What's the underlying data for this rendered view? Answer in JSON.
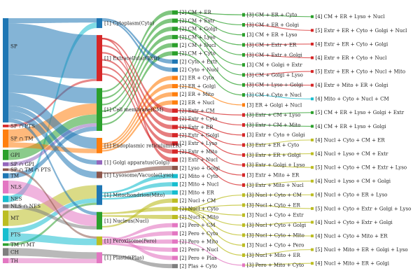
{
  "chart_data": {
    "type": "sankey",
    "title": "",
    "columns": [
      {
        "name": "signals",
        "nodes": [
          {
            "label": "SP",
            "color": "#1f77b4"
          },
          {
            "label": "SP ∩ PTS",
            "color": "#d62728"
          },
          {
            "label": "SP ∩ TM",
            "color": "#ff7f0e"
          },
          {
            "label": "GPI",
            "color": "#2ca02c"
          },
          {
            "label": "SP ∩ GPI",
            "color": "#9467bd"
          },
          {
            "label": "SP ∩ TM ∩ PTS",
            "color": "#8c564b"
          },
          {
            "label": "TM",
            "color": "#1f77b4"
          },
          {
            "label": "NLS",
            "color": "#e377c2"
          },
          {
            "label": "NES",
            "color": "#17becf"
          },
          {
            "label": "NLS ∩ NES",
            "color": "#7f7f7f"
          },
          {
            "label": "MT",
            "color": "#bcbd22"
          },
          {
            "label": "PTS",
            "color": "#17becf"
          },
          {
            "label": "TM ∩ MT",
            "color": "#2ca02c"
          },
          {
            "label": "CH",
            "color": "#7f7f7f"
          },
          {
            "label": "TH",
            "color": "#e377c2"
          }
        ]
      },
      {
        "name": "single location",
        "nodes": [
          {
            "label": "[1] Cytoplasm(Cyto)",
            "color": "#1f77b4"
          },
          {
            "label": "[1] Extracellular(Extr)",
            "color": "#d62728"
          },
          {
            "label": "[1] Cell membrane(CM)",
            "color": "#2ca02c"
          },
          {
            "label": "[1] Endoplasmic reticulum(ER)",
            "color": "#ff7f0e"
          },
          {
            "label": "[1] Golgi apparatus(Golgi)",
            "color": "#9467bd"
          },
          {
            "label": "[1] Lysosome/Vacuole(Lyso)",
            "color": "#8c564b"
          },
          {
            "label": "[1] Mitochondrion(Mito)",
            "color": "#1f77b4"
          },
          {
            "label": "[1] Nucleus(Nucl)",
            "color": "#2ca02c"
          },
          {
            "label": "[1] Peroxisome(Pero)",
            "color": "#bcbd22"
          },
          {
            "label": "[1] Plastid(Plas)",
            "color": "#e377c2"
          }
        ]
      },
      {
        "name": "two locations",
        "nodes": [
          {
            "label": "[2] CM + ER"
          },
          {
            "label": "[2] CM + Extr"
          },
          {
            "label": "[2] CM + Golgi"
          },
          {
            "label": "[2] CM + Lyso"
          },
          {
            "label": "[2] CM + Nucl"
          },
          {
            "label": "[2] CM + Cyto"
          },
          {
            "label": "[2] Cyto + Extr"
          },
          {
            "label": "[2] Cyto + Nucl"
          },
          {
            "label": "[2] ER + Cyto"
          },
          {
            "label": "[2] ER + Golgi"
          },
          {
            "label": "[2] ER + Mito"
          },
          {
            "label": "[2] ER + Nucl"
          },
          {
            "label": "[2] Extr + CM"
          },
          {
            "label": "[2] Extr + Cyto"
          },
          {
            "label": "[2] Extr + ER"
          },
          {
            "label": "[2] Extr + Golgi"
          },
          {
            "label": "[2] Extr + Lyso"
          },
          {
            "label": "[2] Extr + Mito"
          },
          {
            "label": "[2] Extr + Nucl"
          },
          {
            "label": "[2] Lyso + Golgi"
          },
          {
            "label": "[2] Mito + Cyto"
          },
          {
            "label": "[2] Mito + Nucl"
          },
          {
            "label": "[2] Mito + ER"
          },
          {
            "label": "[2] Nucl + CM"
          },
          {
            "label": "[2] Nucl + Cyto"
          },
          {
            "label": "[2] Nucl + Mito"
          },
          {
            "label": "[2] Pero + CM"
          },
          {
            "label": "[2] Pero + Cyto"
          },
          {
            "label": "[2] Pero + Mito"
          },
          {
            "label": "[2] Pero + Nucl"
          },
          {
            "label": "[2] Pero + Plas"
          },
          {
            "label": "[2] Plas + Cyto"
          }
        ]
      },
      {
        "name": "three locations",
        "nodes": [
          {
            "label": "[3] CM + ER + Cyto"
          },
          {
            "label": "[3] CM + ER + Golgi"
          },
          {
            "label": "[3] CM + ER + Lyso"
          },
          {
            "label": "[3] CM + Extr + ER"
          },
          {
            "label": "[3] CM + Extr + Golgi"
          },
          {
            "label": "[3] CM + Golgi + Extr"
          },
          {
            "label": "[3] CM + Golgi + Lyso"
          },
          {
            "label": "[3] CM + Lyso + Golgi"
          },
          {
            "label": "[3] CM + Cyto + Nucl"
          },
          {
            "label": "[3] ER + Golgi + Nucl"
          },
          {
            "label": "[3] Extr + CM + Lyso"
          },
          {
            "label": "[3] Extr + CM + Mito"
          },
          {
            "label": "[3] Extr + Cyto + Golgi"
          },
          {
            "label": "[3] Extr + ER + Cyto"
          },
          {
            "label": "[3] Extr + ER + Golgi"
          },
          {
            "label": "[3] Extr + Golgi + Lyso"
          },
          {
            "label": "[3] Extr + Mito + ER"
          },
          {
            "label": "[3] Extr + Mito + Nucl"
          },
          {
            "label": "[3] Nucl + Cyto + CM"
          },
          {
            "label": "[3] Nucl + Cyto + ER"
          },
          {
            "label": "[3] Nucl + Cyto + Extr"
          },
          {
            "label": "[3] Nucl + Cyto + Golgi"
          },
          {
            "label": "[3] Nucl + Cyto + Mito"
          },
          {
            "label": "[3] Nucl + Cyto + Pero"
          },
          {
            "label": "[3] Nucl + Mito + ER"
          },
          {
            "label": "[3] Pero + Mito + Cyto"
          }
        ]
      },
      {
        "name": "four and five locations",
        "nodes": [
          {
            "label": "[4] CM + ER + Lyso + Nucl"
          },
          {
            "label": "[5] Extr + ER + Cyto + Golgi + Nucl"
          },
          {
            "label": "[4] Extr + ER + Cyto + Golgi"
          },
          {
            "label": "[4] Extr + ER + Cyto + Nucl"
          },
          {
            "label": "[5] Extr + ER + Cyto + Nucl + Mito"
          },
          {
            "label": "[4] Extr + Mito + ER + Golgi"
          },
          {
            "label": "[4] Mito + Cyto + Nucl + CM"
          },
          {
            "label": "[5] CM + ER + Lyso + Golgi + Extr"
          },
          {
            "label": "[4] CM + ER + Lyso + Golgi"
          },
          {
            "label": "[4] Nucl + Cyto + CM + ER"
          },
          {
            "label": "[4] Nucl + Lyso + CM + Extr"
          },
          {
            "label": "[5] Nucl + Cyto + CM + Extr + Lyso"
          },
          {
            "label": "[4] Nucl + Lyso + CM + Golgi"
          },
          {
            "label": "[4] Nucl + Cyto + ER + Lyso"
          },
          {
            "label": "[5] Nucl + Cyto + Extr + Golgi + Lyso"
          },
          {
            "label": "[4] Nucl + Cyto + Extr + Golgi"
          },
          {
            "label": "[4] Nucl + Cyto + Mito + ER"
          },
          {
            "label": "[5] Nucl + Mito + ER + Golgi + Lyso"
          },
          {
            "label": "[4] Nucl + Mito + ER + Golgi"
          }
        ]
      }
    ],
    "links": [
      {
        "from": "SP",
        "to": "[1] Cytoplasm(Cyto)",
        "value": 4
      },
      {
        "from": "SP",
        "to": "[1] Extracellular(Extr)",
        "value": 40
      },
      {
        "from": "SP",
        "to": "[1] Cell membrane(CM)",
        "value": 14
      },
      {
        "from": "SP",
        "to": "[1] Endoplasmic reticulum(ER)",
        "value": 10
      },
      {
        "from": "SP",
        "to": "[1] Golgi apparatus(Golgi)",
        "value": 4
      },
      {
        "from": "SP",
        "to": "[1] Lysosome/Vacuole(Lyso)",
        "value": 6
      },
      {
        "from": "SP",
        "to": "[1] Nucleus(Nucl)",
        "value": 3
      },
      {
        "from": "SP ∩ PTS",
        "to": "[1] Extracellular(Extr)",
        "value": 2
      },
      {
        "from": "SP ∩ TM",
        "to": "[1] Cell membrane(CM)",
        "value": 10
      },
      {
        "from": "SP ∩ TM",
        "to": "[1] Endoplasmic reticulum(ER)",
        "value": 4
      },
      {
        "from": "GPI",
        "to": "[1] Cell membrane(CM)",
        "value": 8
      },
      {
        "from": "SP ∩ GPI",
        "to": "[1] Cell membrane(CM)",
        "value": 3
      },
      {
        "from": "SP ∩ TM ∩ PTS",
        "to": "[1] Peroxisome(Pero)",
        "value": 2
      },
      {
        "from": "TM",
        "to": "[1] Cell membrane(CM)",
        "value": 4
      },
      {
        "from": "NLS",
        "to": "[1] Nucleus(Nucl)",
        "value": 10
      },
      {
        "from": "NES",
        "to": "[1] Cytoplasm(Cyto)",
        "value": 5
      },
      {
        "from": "NLS ∩ NES",
        "to": "[1] Nucleus(Nucl)",
        "value": 3
      },
      {
        "from": "MT",
        "to": "[1] Mitochondrion(Mito)",
        "value": 12
      },
      {
        "from": "PTS",
        "to": "[1] Peroxisome(Pero)",
        "value": 6
      },
      {
        "from": "PTS",
        "to": "[1] Mitochondrion(Mito)",
        "value": 4
      },
      {
        "from": "TM ∩ MT",
        "to": "[1] Mitochondrion(Mito)",
        "value": 2
      },
      {
        "from": "CH",
        "to": "[1] Plastid(Plas)",
        "value": 6
      },
      {
        "from": "TH",
        "to": "[1] Plastid(Plas)",
        "value": 4
      }
    ]
  }
}
